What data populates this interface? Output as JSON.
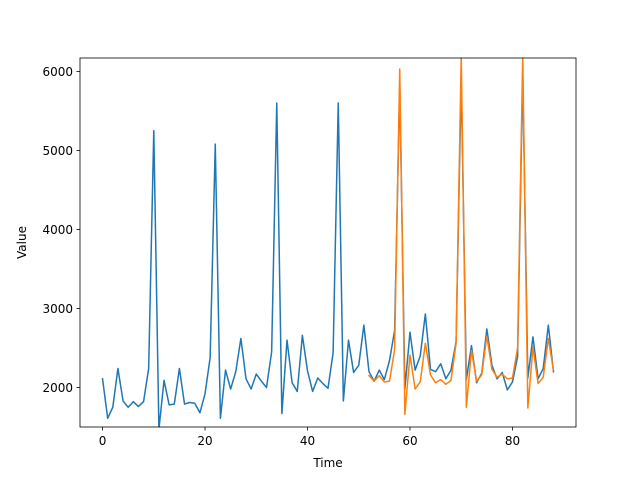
{
  "chart_data": {
    "type": "line",
    "title": "",
    "xlabel": "Time",
    "ylabel": "Value",
    "xlim": [
      -4.4,
      92.4
    ],
    "ylim": [
      1500,
      6170
    ],
    "xticks": [
      0,
      20,
      40,
      60,
      80
    ],
    "yticks": [
      2000,
      3000,
      4000,
      5000,
      6000
    ],
    "grid": false,
    "legend": "none",
    "series": [
      {
        "color": "#1f77b4",
        "x": [
          0,
          1,
          2,
          3,
          4,
          5,
          6,
          7,
          8,
          9,
          10,
          11,
          12,
          13,
          14,
          15,
          16,
          17,
          18,
          19,
          20,
          21,
          22,
          23,
          24,
          25,
          26,
          27,
          28,
          29,
          30,
          31,
          32,
          33,
          34,
          35,
          36,
          37,
          38,
          39,
          40,
          41,
          42,
          43,
          44,
          45,
          46,
          47,
          48,
          49,
          50,
          51,
          52,
          53,
          54,
          55,
          56,
          57,
          58,
          59,
          60,
          61,
          62,
          63,
          64,
          65,
          66,
          67,
          68,
          69,
          70,
          71,
          72,
          73,
          74,
          75,
          76,
          77,
          78,
          79,
          80,
          81,
          82,
          83,
          84,
          85,
          86,
          87,
          88
        ],
        "values": [
          2110,
          1610,
          1750,
          2240,
          1830,
          1750,
          1820,
          1760,
          1820,
          2240,
          5250,
          1470,
          2090,
          1780,
          1790,
          2240,
          1790,
          1810,
          1800,
          1680,
          1920,
          2380,
          5080,
          1610,
          2220,
          1980,
          2200,
          2620,
          2110,
          1980,
          2170,
          2080,
          2000,
          2450,
          5600,
          1670,
          2600,
          2060,
          1950,
          2660,
          2210,
          1950,
          2120,
          2050,
          1990,
          2440,
          5600,
          1830,
          2600,
          2190,
          2280,
          2790,
          2200,
          2080,
          2220,
          2100,
          2340,
          2720,
          5820,
          1980,
          2700,
          2220,
          2400,
          2930,
          2230,
          2200,
          2300,
          2110,
          2220,
          2580,
          5900,
          2100,
          2530,
          2060,
          2180,
          2740,
          2280,
          2110,
          2190,
          1970,
          2070,
          2390,
          5980,
          2120,
          2640,
          2110,
          2240,
          2790,
          2200
        ]
      },
      {
        "color": "#ff7f0e",
        "x": [
          52,
          53,
          54,
          55,
          56,
          57,
          58,
          59,
          60,
          61,
          62,
          63,
          64,
          65,
          66,
          67,
          68,
          69,
          70,
          71,
          72,
          73,
          74,
          75,
          76,
          77,
          78,
          79,
          80,
          81,
          82,
          83,
          84,
          85,
          86,
          87,
          88
        ],
        "values": [
          2150,
          2080,
          2150,
          2070,
          2080,
          2480,
          6030,
          1660,
          2410,
          1980,
          2070,
          2560,
          2160,
          2060,
          2100,
          2040,
          2090,
          2560,
          6200,
          1750,
          2470,
          2080,
          2160,
          2650,
          2230,
          2130,
          2170,
          2110,
          2120,
          2500,
          6200,
          1740,
          2510,
          2050,
          2130,
          2620,
          2220
        ]
      }
    ]
  }
}
